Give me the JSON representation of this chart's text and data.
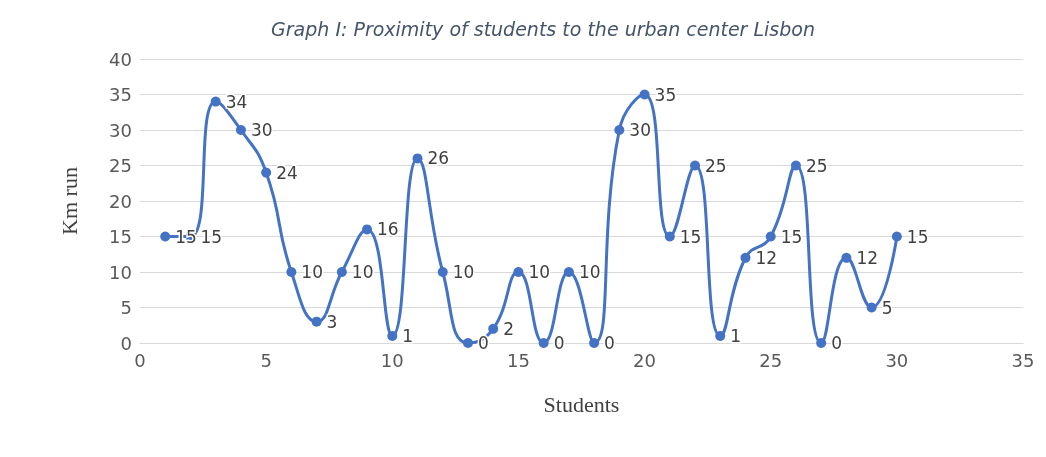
{
  "chart_data": {
    "type": "line",
    "title": "Graph I: Proximity of students to the urban center Lisbon",
    "xlabel": "Students",
    "ylabel": "Km run",
    "x": [
      1,
      2,
      3,
      4,
      5,
      6,
      7,
      8,
      9,
      10,
      11,
      12,
      13,
      14,
      15,
      16,
      17,
      18,
      19,
      20,
      21,
      22,
      23,
      24,
      25,
      26,
      27,
      28,
      29,
      30
    ],
    "series": [
      {
        "color": "#4472c4",
        "values": [
          15,
          15,
          34,
          30,
          24,
          10,
          3,
          10,
          16,
          1,
          26,
          10,
          0,
          2,
          10,
          0,
          10,
          0,
          30,
          35,
          15,
          25,
          1,
          12,
          15,
          25,
          0,
          12,
          5,
          15
        ]
      }
    ],
    "xlim": [
      0,
      35
    ],
    "xticks": [
      0,
      5,
      10,
      15,
      20,
      25,
      30,
      35
    ],
    "ylim": [
      0,
      40
    ],
    "yticks": [
      0,
      5,
      10,
      15,
      20,
      25,
      30,
      35,
      40
    ],
    "grid": "y",
    "marker": "circle",
    "line_style": "solid",
    "data_labels": true
  }
}
